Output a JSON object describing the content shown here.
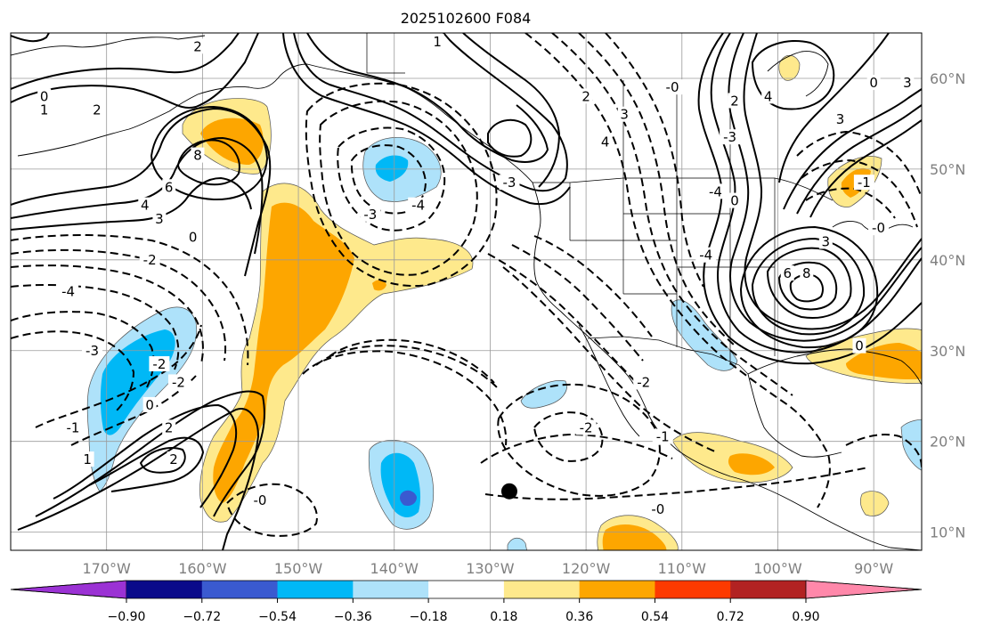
{
  "title": "2025102600 F084",
  "map": {
    "type": "contour-map",
    "lon_range": [
      -180,
      -85
    ],
    "lat_range": [
      8,
      65
    ],
    "lon_labels": [
      "170°W",
      "160°W",
      "150°W",
      "140°W",
      "130°W",
      "120°W",
      "110°W",
      "100°W",
      "90°W"
    ],
    "lat_labels": [
      "60°N",
      "50°N",
      "40°N",
      "30°N",
      "20°N",
      "10°N"
    ],
    "grid": true,
    "marker": {
      "lon": -128,
      "lat": 14.5
    },
    "contour_labels": [
      {
        "text": "2",
        "lon": -160.5,
        "lat": 63.5
      },
      {
        "text": "0",
        "lon": -176.5,
        "lat": 58
      },
      {
        "text": "1",
        "lon": -176.5,
        "lat": 56.5
      },
      {
        "text": "2",
        "lon": -171,
        "lat": 56.5
      },
      {
        "text": "8",
        "lon": -160.5,
        "lat": 51.5
      },
      {
        "text": "6",
        "lon": -163.5,
        "lat": 48
      },
      {
        "text": "4",
        "lon": -166,
        "lat": 46
      },
      {
        "text": "3",
        "lon": -164.5,
        "lat": 44.5
      },
      {
        "text": "0",
        "lon": -161,
        "lat": 42.5
      },
      {
        "text": "-2",
        "lon": -165.5,
        "lat": 40
      },
      {
        "text": "-4",
        "lon": -174,
        "lat": 36.5
      },
      {
        "text": "-3",
        "lon": -171.5,
        "lat": 30
      },
      {
        "text": "-2",
        "lon": -164.5,
        "lat": 28.5
      },
      {
        "text": "-2",
        "lon": -162.5,
        "lat": 26.5
      },
      {
        "text": "0",
        "lon": -165.5,
        "lat": 24
      },
      {
        "text": "2",
        "lon": -163.5,
        "lat": 21.5
      },
      {
        "text": "-1",
        "lon": -173.5,
        "lat": 21.5
      },
      {
        "text": "1",
        "lon": -172,
        "lat": 18
      },
      {
        "text": "2",
        "lon": -163,
        "lat": 18
      },
      {
        "text": "-0",
        "lon": -154,
        "lat": 13.5
      },
      {
        "text": "1",
        "lon": -135.5,
        "lat": 64
      },
      {
        "text": "2",
        "lon": -120,
        "lat": 58
      },
      {
        "text": "-3",
        "lon": -128,
        "lat": 48.5
      },
      {
        "text": "-3",
        "lon": -142.5,
        "lat": 45
      },
      {
        "text": "-4",
        "lon": -137.5,
        "lat": 46
      },
      {
        "text": "3",
        "lon": -116,
        "lat": 56
      },
      {
        "text": "4",
        "lon": -118,
        "lat": 53
      },
      {
        "text": "-0",
        "lon": -111,
        "lat": 59
      },
      {
        "text": "-3",
        "lon": -105,
        "lat": 53.5
      },
      {
        "text": "-4",
        "lon": -106.5,
        "lat": 47.5
      },
      {
        "text": "-4",
        "lon": -107.5,
        "lat": 40.5
      },
      {
        "text": "-2",
        "lon": -114,
        "lat": 26.5
      },
      {
        "text": "-2",
        "lon": -120,
        "lat": 21.5
      },
      {
        "text": "-1",
        "lon": -112,
        "lat": 20.5
      },
      {
        "text": "-0",
        "lon": -112.5,
        "lat": 12.5
      },
      {
        "text": "2",
        "lon": -104.5,
        "lat": 57.5
      },
      {
        "text": "4",
        "lon": -101,
        "lat": 58
      },
      {
        "text": "3",
        "lon": -93.5,
        "lat": 55.5
      },
      {
        "text": "0",
        "lon": -90,
        "lat": 59.5
      },
      {
        "text": "3",
        "lon": -86.5,
        "lat": 59.5
      },
      {
        "text": "0",
        "lon": -104.5,
        "lat": 46.5
      },
      {
        "text": "3",
        "lon": -95,
        "lat": 42
      },
      {
        "text": "6",
        "lon": -99,
        "lat": 38.5
      },
      {
        "text": "8",
        "lon": -97,
        "lat": 38.5
      },
      {
        "text": "-1",
        "lon": -91,
        "lat": 48.5
      },
      {
        "text": "-0",
        "lon": -89.5,
        "lat": 43.5
      },
      {
        "text": "0",
        "lon": -91.5,
        "lat": 30.5
      }
    ]
  },
  "colorbar": {
    "tick_labels": [
      "−0.90",
      "−0.72",
      "−0.54",
      "−0.36",
      "−0.18",
      "0.18",
      "0.36",
      "0.54",
      "0.72",
      "0.90"
    ],
    "colors": [
      "#9b32d4",
      "#0a0a8a",
      "#3a5ad0",
      "#00b8f6",
      "#aee2fa",
      "#ffffff",
      "#fee98c",
      "#fda600",
      "#fd3a00",
      "#b22222",
      "#ff88aa"
    ]
  }
}
